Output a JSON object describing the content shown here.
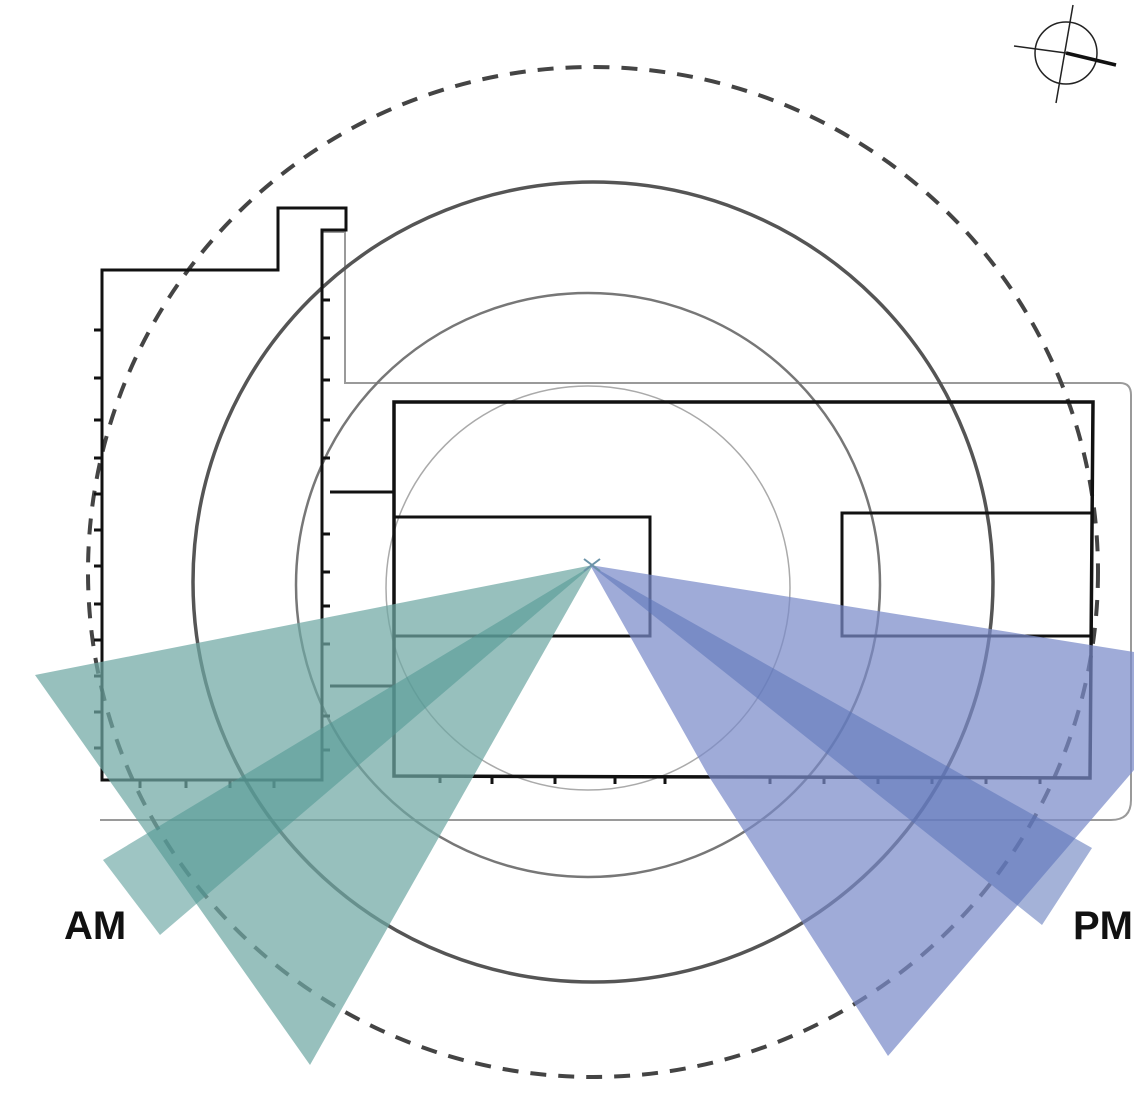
{
  "labels": {
    "am": "AM",
    "pm": "PM"
  },
  "colors": {
    "am_wedge": "#6fa8a3",
    "am_core": "#4f9591",
    "pm_wedge": "#7a8bc9",
    "pm_core": "#5a72b8",
    "plan_line": "#111111",
    "site_line": "#9a9a9a",
    "ring_dark": "#555555",
    "ring_mid": "#777777",
    "ring_light": "#aaaaaa",
    "dashed_ring": "#444444"
  },
  "icons": {
    "north_arrow": "north-arrow-icon"
  }
}
